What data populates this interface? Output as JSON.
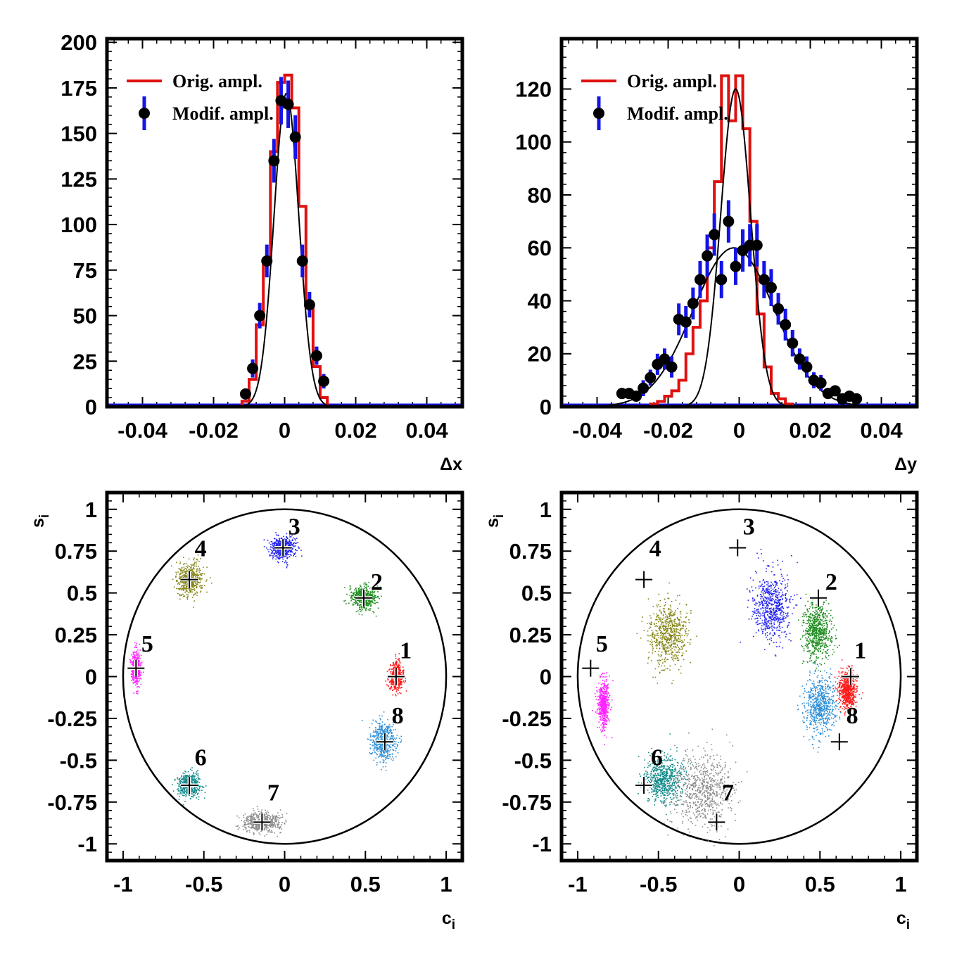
{
  "colors": {
    "orig": "#e01010",
    "modif_err": "#1414e6",
    "modif_pt": "#000000",
    "fit": "#000000",
    "frame": "#000000",
    "bins": [
      "#ff1a1a",
      "#1e8c1e",
      "#2323f0",
      "#86861a",
      "#ff20ff",
      "#138a8a",
      "#8c8c8c",
      "#2f8fd8"
    ]
  },
  "chart_data": [
    {
      "id": "dx",
      "type": "histogram",
      "xlabel": "Δx",
      "ylabel": "",
      "xlim": [
        -0.05,
        0.05
      ],
      "ylim": [
        0,
        202
      ],
      "xticks": [
        -0.04,
        -0.02,
        0,
        0.02,
        0.04
      ],
      "xtick_labels": [
        "-0.04",
        "-0.02",
        "0",
        "0.02",
        "0.04"
      ],
      "yticks": [
        0,
        25,
        50,
        75,
        100,
        125,
        150,
        175,
        200
      ],
      "ytick_labels": [
        "0",
        "25",
        "50",
        "75",
        "100",
        "125",
        "150",
        "175",
        "200"
      ],
      "legend": [
        "Orig. ampl.",
        "Modif. ampl."
      ],
      "legend_position": "top-left",
      "orig_hist": {
        "edges": [
          -0.05,
          -0.012,
          -0.01,
          -0.008,
          -0.006,
          -0.004,
          -0.002,
          0,
          0.002,
          0.004,
          0.006,
          0.008,
          0.01,
          0.012,
          0.05
        ],
        "values": [
          0,
          3,
          15,
          45,
          80,
          140,
          178,
          182,
          164,
          110,
          55,
          22,
          5,
          0
        ]
      },
      "modif_points": {
        "x": [
          -0.011,
          -0.009,
          -0.007,
          -0.005,
          -0.003,
          -0.001,
          0.001,
          0.003,
          0.005,
          0.007,
          0.009,
          0.011
        ],
        "y": [
          7,
          21,
          50,
          80,
          135,
          168,
          166,
          148,
          80,
          56,
          28,
          14
        ],
        "err": [
          3,
          5,
          7,
          9,
          12,
          13,
          13,
          12,
          9,
          7,
          5,
          4
        ]
      },
      "fit_curves": [
        {
          "mean": 0.0005,
          "sigma": 0.0035,
          "amplitude": 172
        }
      ]
    },
    {
      "id": "dy",
      "type": "histogram",
      "xlabel": "Δy",
      "ylabel": "",
      "xlim": [
        -0.05,
        0.05
      ],
      "ylim": [
        0,
        139
      ],
      "xticks": [
        -0.04,
        -0.02,
        0,
        0.02,
        0.04
      ],
      "xtick_labels": [
        "-0.04",
        "-0.02",
        "0",
        "0.02",
        "0.04"
      ],
      "yticks": [
        0,
        20,
        40,
        60,
        80,
        100,
        120
      ],
      "ytick_labels": [
        "0",
        "20",
        "40",
        "60",
        "80",
        "100",
        "120"
      ],
      "legend": [
        "Orig. ampl.",
        "Modif. ampl."
      ],
      "legend_position": "top-left",
      "orig_hist": {
        "edges": [
          -0.05,
          -0.025,
          -0.023,
          -0.021,
          -0.019,
          -0.017,
          -0.015,
          -0.013,
          -0.011,
          -0.009,
          -0.007,
          -0.005,
          -0.003,
          -0.001,
          0.001,
          0.003,
          0.005,
          0.007,
          0.009,
          0.011,
          0.013,
          0.015,
          0.017,
          0.05
        ],
        "values": [
          0,
          1,
          2,
          4,
          6,
          10,
          20,
          30,
          40,
          60,
          85,
          125,
          108,
          125,
          105,
          70,
          35,
          15,
          5,
          3,
          1,
          0,
          0
        ]
      },
      "modif_points": {
        "x": [
          -0.033,
          -0.031,
          -0.029,
          -0.027,
          -0.025,
          -0.023,
          -0.021,
          -0.019,
          -0.017,
          -0.015,
          -0.013,
          -0.011,
          -0.009,
          -0.007,
          -0.005,
          -0.003,
          -0.001,
          0.001,
          0.003,
          0.005,
          0.007,
          0.009,
          0.011,
          0.013,
          0.015,
          0.017,
          0.019,
          0.021,
          0.023,
          0.025,
          0.027,
          0.029,
          0.031,
          0.033
        ],
        "y": [
          5,
          5,
          4,
          7,
          11,
          16,
          18,
          15,
          33,
          32,
          39,
          48,
          57,
          65,
          48,
          70,
          53,
          59,
          61,
          61,
          48,
          45,
          37,
          31,
          24,
          18,
          15,
          10,
          9,
          5,
          6,
          3,
          4,
          3
        ],
        "err": [
          2,
          2,
          2,
          3,
          3,
          4,
          4,
          4,
          6,
          6,
          6,
          7,
          8,
          8,
          7,
          8,
          7,
          8,
          8,
          8,
          7,
          7,
          6,
          6,
          5,
          4,
          4,
          3,
          3,
          2,
          2,
          2,
          2,
          2
        ]
      },
      "fit_curves": [
        {
          "mean": -0.001,
          "sigma": 0.0042,
          "amplitude": 120
        },
        {
          "mean": -0.0015,
          "sigma": 0.0115,
          "amplitude": 60
        }
      ]
    },
    {
      "id": "ci_si_orig",
      "type": "scatter",
      "xlabel": "c",
      "xlabel_sub": "i",
      "ylabel": "s",
      "ylabel_sub": "i",
      "xlim": [
        -1.1,
        1.1
      ],
      "ylim": [
        -1.1,
        1.1
      ],
      "xticks": [
        -1,
        -0.5,
        0,
        0.5,
        1
      ],
      "xtick_labels": [
        "-1",
        "-0.5",
        "0",
        "0.5",
        "1"
      ],
      "yticks": [
        -1,
        -0.75,
        -0.5,
        -0.25,
        0,
        0.25,
        0.5,
        0.75,
        1
      ],
      "ytick_labels": [
        "-1",
        "-0.75",
        "-0.5",
        "-0.25",
        "0",
        "0.25",
        "0.5",
        "0.75",
        "1"
      ],
      "unit_circle": true,
      "reference_points": [
        {
          "bin": "1",
          "c": 0.69,
          "s": 0.0
        },
        {
          "bin": "2",
          "c": 0.49,
          "s": 0.47
        },
        {
          "bin": "3",
          "c": -0.01,
          "s": 0.77
        },
        {
          "bin": "4",
          "c": -0.59,
          "s": 0.58
        },
        {
          "bin": "5",
          "c": -0.92,
          "s": 0.05
        },
        {
          "bin": "6",
          "c": -0.59,
          "s": -0.65
        },
        {
          "bin": "7",
          "c": -0.14,
          "s": -0.87
        },
        {
          "bin": "8",
          "c": 0.62,
          "s": -0.39
        }
      ],
      "clusters": [
        {
          "bin": "1",
          "c": 0.69,
          "s": 0.0,
          "sc": 0.022,
          "ss": 0.045,
          "n": 420
        },
        {
          "bin": "2",
          "c": 0.49,
          "s": 0.47,
          "sc": 0.038,
          "ss": 0.036,
          "n": 520
        },
        {
          "bin": "3",
          "c": -0.01,
          "s": 0.77,
          "sc": 0.04,
          "ss": 0.034,
          "n": 520
        },
        {
          "bin": "4",
          "c": -0.59,
          "s": 0.58,
          "sc": 0.04,
          "ss": 0.05,
          "n": 520
        },
        {
          "bin": "5",
          "c": -0.92,
          "s": 0.05,
          "sc": 0.015,
          "ss": 0.05,
          "n": 420
        },
        {
          "bin": "6",
          "c": -0.59,
          "s": -0.65,
          "sc": 0.035,
          "ss": 0.034,
          "n": 480
        },
        {
          "bin": "7",
          "c": -0.14,
          "s": -0.87,
          "sc": 0.06,
          "ss": 0.03,
          "n": 520
        },
        {
          "bin": "8",
          "c": 0.61,
          "s": -0.39,
          "sc": 0.04,
          "ss": 0.055,
          "n": 520
        }
      ],
      "labels": [
        {
          "text": "1",
          "c": 0.75,
          "s": 0.16
        },
        {
          "text": "2",
          "c": 0.57,
          "s": 0.57
        },
        {
          "text": "3",
          "c": 0.06,
          "s": 0.9
        },
        {
          "text": "4",
          "c": -0.52,
          "s": 0.77
        },
        {
          "text": "5",
          "c": -0.85,
          "s": 0.2
        },
        {
          "text": "6",
          "c": -0.52,
          "s": -0.48
        },
        {
          "text": "7",
          "c": -0.07,
          "s": -0.69
        },
        {
          "text": "8",
          "c": 0.7,
          "s": -0.23
        }
      ]
    },
    {
      "id": "ci_si_modif",
      "type": "scatter",
      "xlabel": "c",
      "xlabel_sub": "i",
      "ylabel": "s",
      "ylabel_sub": "i",
      "xlim": [
        -1.1,
        1.1
      ],
      "ylim": [
        -1.1,
        1.1
      ],
      "xticks": [
        -1,
        -0.5,
        0,
        0.5,
        1
      ],
      "xtick_labels": [
        "-1",
        "-0.5",
        "0",
        "0.5",
        "1"
      ],
      "yticks": [
        -1,
        -0.75,
        -0.5,
        -0.25,
        0,
        0.25,
        0.5,
        0.75,
        1
      ],
      "ytick_labels": [
        "-1",
        "-0.75",
        "-0.5",
        "-0.25",
        "0",
        "0.25",
        "0.5",
        "0.75",
        "1"
      ],
      "unit_circle": true,
      "reference_points": [
        {
          "bin": "1",
          "c": 0.69,
          "s": 0.0
        },
        {
          "bin": "2",
          "c": 0.49,
          "s": 0.47
        },
        {
          "bin": "3",
          "c": -0.01,
          "s": 0.77
        },
        {
          "bin": "4",
          "c": -0.59,
          "s": 0.58
        },
        {
          "bin": "5",
          "c": -0.92,
          "s": 0.05
        },
        {
          "bin": "6",
          "c": -0.59,
          "s": -0.65
        },
        {
          "bin": "7",
          "c": -0.14,
          "s": -0.87
        },
        {
          "bin": "8",
          "c": 0.62,
          "s": -0.39
        }
      ],
      "clusters": [
        {
          "bin": "1",
          "c": 0.67,
          "s": -0.08,
          "sc": 0.025,
          "ss": 0.06,
          "n": 650
        },
        {
          "bin": "2",
          "c": 0.48,
          "s": 0.27,
          "sc": 0.045,
          "ss": 0.09,
          "n": 650
        },
        {
          "bin": "3",
          "c": 0.2,
          "s": 0.42,
          "sc": 0.06,
          "ss": 0.1,
          "n": 650
        },
        {
          "bin": "4",
          "c": -0.44,
          "s": 0.25,
          "sc": 0.06,
          "ss": 0.1,
          "n": 650
        },
        {
          "bin": "5",
          "c": -0.84,
          "s": -0.16,
          "sc": 0.018,
          "ss": 0.07,
          "n": 480
        },
        {
          "bin": "6",
          "c": -0.47,
          "s": -0.62,
          "sc": 0.06,
          "ss": 0.07,
          "n": 650
        },
        {
          "bin": "7",
          "c": -0.22,
          "s": -0.68,
          "sc": 0.09,
          "ss": 0.11,
          "n": 700
        },
        {
          "bin": "8",
          "c": 0.5,
          "s": -0.17,
          "sc": 0.05,
          "ss": 0.09,
          "n": 650
        }
      ],
      "labels": [
        {
          "text": "1",
          "c": 0.75,
          "s": 0.16
        },
        {
          "text": "2",
          "c": 0.57,
          "s": 0.57
        },
        {
          "text": "3",
          "c": 0.06,
          "s": 0.9
        },
        {
          "text": "4",
          "c": -0.52,
          "s": 0.77
        },
        {
          "text": "5",
          "c": -0.85,
          "s": 0.2
        },
        {
          "text": "6",
          "c": -0.51,
          "s": -0.48
        },
        {
          "text": "7",
          "c": -0.07,
          "s": -0.69
        },
        {
          "text": "8",
          "c": 0.7,
          "s": -0.23
        }
      ]
    }
  ]
}
